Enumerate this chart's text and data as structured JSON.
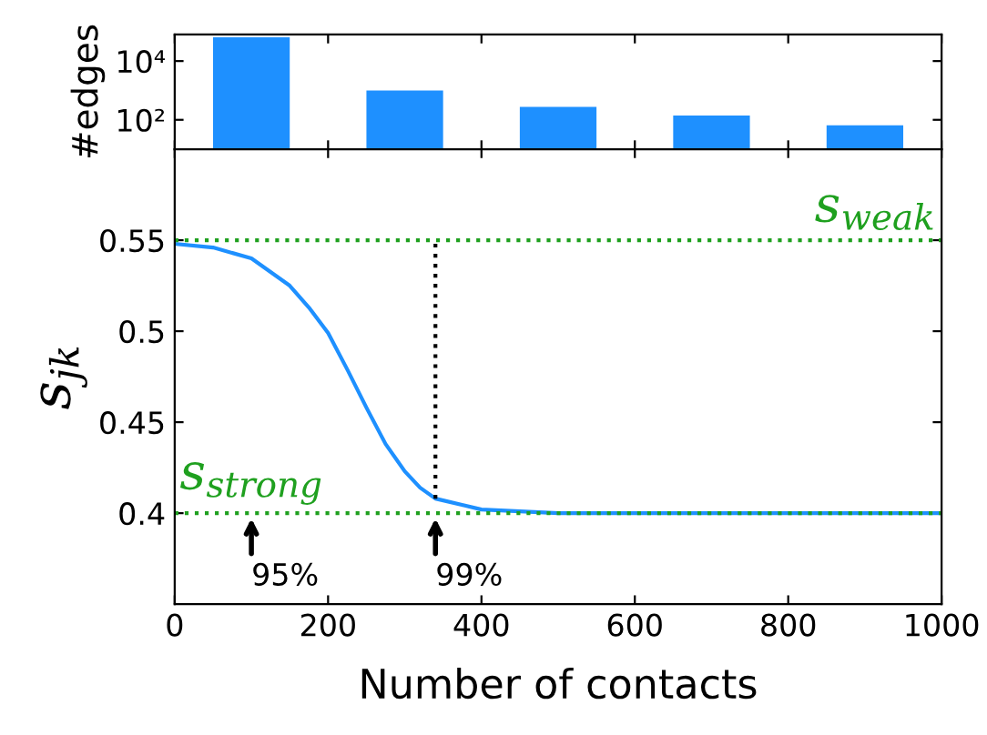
{
  "chart_data": [
    {
      "type": "bar",
      "ylabel": "#edges",
      "x": [
        100,
        300,
        500,
        700,
        900
      ],
      "values": [
        65000,
        1000,
        275,
        140,
        65
      ],
      "color": "#1e90ff",
      "log": true,
      "xlim": [
        0,
        1000
      ],
      "xticks": [
        {
          "value": 0,
          "label": null
        },
        {
          "value": 200,
          "label": null
        },
        {
          "value": 400,
          "label": null
        },
        {
          "value": 600,
          "label": null
        },
        {
          "value": 800,
          "label": null
        },
        {
          "value": 1000,
          "label": null
        }
      ],
      "ylim": [
        10,
        80000
      ],
      "yticks": [
        {
          "value": 100,
          "label": "10²"
        },
        {
          "value": 10000,
          "label": "10⁴"
        }
      ],
      "tick_labels": "y",
      "grid": false
    },
    {
      "type": "line",
      "xlabel": "Number of contacts",
      "ylabel": "s$_{jk}$",
      "xlim": [
        0,
        1000
      ],
      "ylim": [
        0.35,
        0.6
      ],
      "xticks": [
        0,
        200,
        400,
        600,
        800,
        1000
      ],
      "yticks": [
        0.4,
        0.45,
        0.5,
        0.55
      ],
      "grid": false,
      "series": [
        {
          "color": "#1e90ff",
          "x": [
            0,
            50,
            100,
            150,
            175,
            200,
            225,
            250,
            275,
            300,
            320,
            340,
            400,
            450,
            500,
            1000
          ],
          "values": [
            0.548,
            0.546,
            0.54,
            0.525,
            0.513,
            0.499,
            0.479,
            0.458,
            0.438,
            0.423,
            0.414,
            0.408,
            0.402,
            0.401,
            0.4,
            0.4
          ]
        },
        {
          "color": "#000000",
          "line_style": "dotted",
          "x": [
            340,
            340
          ],
          "values": [
            0.408,
            0.55
          ]
        }
      ],
      "ref_lines": [
        {
          "axis": "y",
          "value": 0.55,
          "label": "s$_{weak}$",
          "color": "#1fa01f",
          "line_style": "dotted"
        },
        {
          "axis": "y",
          "value": 0.4,
          "label": "s$_{strong}$",
          "color": "#1fa01f",
          "line_style": "dotted"
        }
      ],
      "annotations": [
        {
          "text": "95%",
          "x": 100,
          "y": 0.4
        },
        {
          "text": "99%",
          "x": 340,
          "y": 0.4
        }
      ]
    }
  ]
}
